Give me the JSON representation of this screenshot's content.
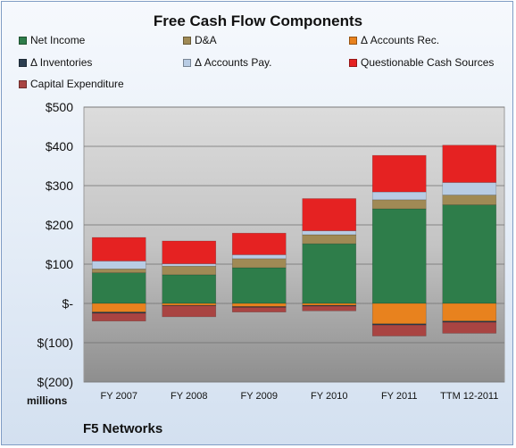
{
  "chart_data": {
    "type": "bar",
    "stacked": true,
    "title": "Free Cash Flow Components",
    "units_label": "millions",
    "company": "F5 Networks",
    "categories": [
      "FY 2007",
      "FY 2008",
      "FY 2009",
      "FY 2010",
      "FY 2011",
      "TTM 12-2011"
    ],
    "ylim": [
      -200,
      500
    ],
    "yticks": [
      -200,
      -100,
      0,
      100,
      200,
      300,
      400,
      500
    ],
    "ytick_labels": [
      "$(200)",
      "$(100)",
      "$-",
      "$100",
      "$200",
      "$300",
      "$400",
      "$500"
    ],
    "grid": true,
    "legend_position": "top",
    "series": [
      {
        "name": "Net Income",
        "color": "#2e7d4a",
        "values": [
          78,
          73,
          91,
          152,
          241,
          251
        ]
      },
      {
        "name": "D&A",
        "color": "#a08a55",
        "values": [
          10,
          22,
          23,
          23,
          23,
          25
        ]
      },
      {
        "name": "Δ Accounts Rec.",
        "color": "#e8821e",
        "values": [
          -22,
          -5,
          -8,
          -5,
          -52,
          -45
        ]
      },
      {
        "name": "Δ Inventories",
        "color": "#2c3e50",
        "values": [
          -3,
          -1,
          -2,
          -2,
          -3,
          -3
        ]
      },
      {
        "name": "Δ Accounts Pay.",
        "color": "#b8cce4",
        "values": [
          20,
          6,
          10,
          10,
          20,
          32
        ]
      },
      {
        "name": "Questionable Cash Sources",
        "color": "#e52222",
        "values": [
          60,
          58,
          55,
          82,
          93,
          95
        ]
      },
      {
        "name": "Capital Expenditure",
        "color": "#a94442",
        "values": [
          -20,
          -28,
          -12,
          -12,
          -28,
          -28
        ]
      }
    ]
  }
}
